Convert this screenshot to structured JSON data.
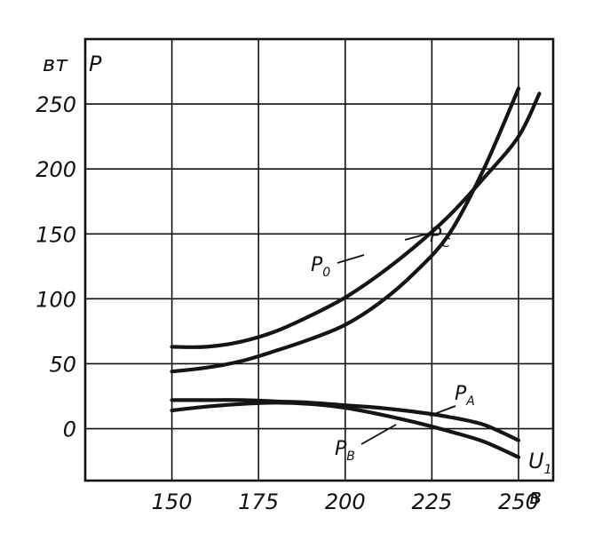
{
  "chart_data": {
    "type": "line",
    "xlabel": "U",
    "xlabel_sub": "1",
    "xunit": "в",
    "ylabel": "P",
    "yunit": "вт",
    "xlim": [
      125,
      260
    ],
    "ylim": [
      -40,
      300
    ],
    "x_ticks": [
      "150",
      "175",
      "200",
      "225",
      "250"
    ],
    "y_ticks": [
      "250",
      "200",
      "150",
      "100",
      "50",
      "0"
    ],
    "grid": true,
    "series": [
      {
        "name": "P",
        "name_sub": "0",
        "x": [
          150,
          160,
          170,
          180,
          190,
          200,
          210,
          220,
          230,
          240,
          250,
          256
        ],
        "y": [
          63,
          63,
          67,
          75,
          87,
          101,
          119,
          140,
          164,
          193,
          225,
          258
        ]
      },
      {
        "name": "P",
        "name_sub": "C",
        "x": [
          150,
          160,
          170,
          180,
          190,
          200,
          210,
          220,
          230,
          240,
          250
        ],
        "y": [
          44,
          47,
          52,
          60,
          69,
          80,
          97,
          120,
          150,
          200,
          262
        ]
      },
      {
        "name": "P",
        "name_sub": "A",
        "x": [
          150,
          160,
          170,
          180,
          190,
          200,
          210,
          220,
          230,
          240,
          250
        ],
        "y": [
          22,
          22,
          22,
          21,
          20,
          18,
          16,
          13,
          9,
          3,
          -9
        ]
      },
      {
        "name": "P",
        "name_sub": "B",
        "x": [
          150,
          160,
          170,
          180,
          190,
          200,
          210,
          220,
          230,
          240,
          250
        ],
        "y": [
          14,
          17,
          19,
          20,
          19,
          16,
          11,
          5,
          -2,
          -10,
          -22
        ]
      }
    ]
  }
}
